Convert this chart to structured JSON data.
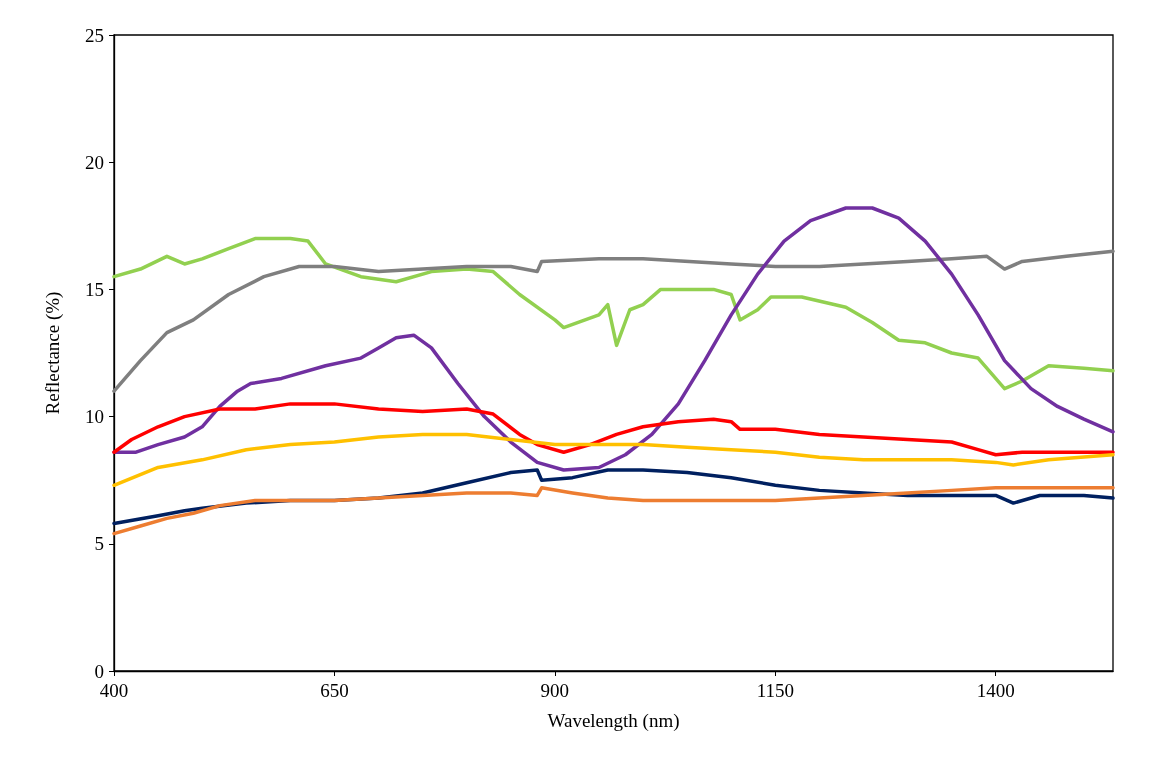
{
  "chart_data": {
    "type": "line",
    "xlabel": "Wavelength (nm)",
    "ylabel": "Reflectance (%)",
    "xlim": [
      400,
      1533
    ],
    "xticks": [
      400,
      650,
      900,
      1150,
      1400
    ],
    "ylim": [
      0,
      25
    ],
    "yticks": [
      0,
      5,
      10,
      15,
      20,
      25
    ],
    "grid": false,
    "marker": "none",
    "line_style": "solid",
    "series": [
      {
        "color": "#92d050",
        "x": [
          400,
          430,
          460,
          480,
          500,
          530,
          560,
          600,
          620,
          640,
          680,
          720,
          760,
          800,
          830,
          860,
          900,
          910,
          950,
          960,
          970,
          985,
          1000,
          1020,
          1060,
          1080,
          1100,
          1110,
          1130,
          1145,
          1180,
          1230,
          1260,
          1290,
          1320,
          1350,
          1380,
          1410,
          1430,
          1460,
          1500,
          1533
        ],
        "values": [
          15.5,
          15.8,
          16.3,
          16.0,
          16.2,
          16.6,
          17.0,
          17.0,
          16.9,
          16.0,
          15.5,
          15.3,
          15.7,
          15.8,
          15.7,
          14.8,
          13.8,
          13.5,
          14.0,
          14.4,
          12.8,
          14.2,
          14.4,
          15.0,
          15.0,
          15.0,
          14.8,
          13.8,
          14.2,
          14.7,
          14.7,
          14.3,
          13.7,
          13.0,
          12.9,
          12.5,
          12.3,
          11.1,
          11.4,
          12.0,
          11.9,
          11.8
        ]
      },
      {
        "color": "#7f7f7f",
        "x": [
          400,
          430,
          460,
          490,
          530,
          570,
          610,
          650,
          700,
          750,
          800,
          850,
          880,
          885,
          950,
          1000,
          1100,
          1150,
          1200,
          1250,
          1300,
          1350,
          1390,
          1410,
          1430,
          1480,
          1533
        ],
        "values": [
          11.0,
          12.2,
          13.3,
          13.8,
          14.8,
          15.5,
          15.9,
          15.9,
          15.7,
          15.8,
          15.9,
          15.9,
          15.7,
          16.1,
          16.2,
          16.2,
          16.0,
          15.9,
          15.9,
          16.0,
          16.1,
          16.2,
          16.3,
          15.8,
          16.1,
          16.3,
          16.5
        ]
      },
      {
        "color": "#7030a0",
        "x": [
          400,
          425,
          450,
          480,
          500,
          520,
          540,
          555,
          590,
          640,
          680,
          700,
          720,
          740,
          760,
          790,
          820,
          850,
          880,
          910,
          950,
          980,
          1010,
          1040,
          1070,
          1100,
          1130,
          1160,
          1190,
          1230,
          1260,
          1290,
          1320,
          1350,
          1380,
          1410,
          1440,
          1470,
          1500,
          1533
        ],
        "values": [
          8.6,
          8.6,
          8.9,
          9.2,
          9.6,
          10.4,
          11.0,
          11.3,
          11.5,
          12.0,
          12.3,
          12.7,
          13.1,
          13.2,
          12.7,
          11.3,
          10.0,
          9.0,
          8.2,
          7.9,
          8.0,
          8.5,
          9.3,
          10.5,
          12.2,
          14.0,
          15.6,
          16.9,
          17.7,
          18.2,
          18.2,
          17.8,
          16.9,
          15.6,
          14.0,
          12.2,
          11.1,
          10.4,
          9.9,
          9.4
        ]
      },
      {
        "color": "#ff0000",
        "x": [
          400,
          420,
          450,
          480,
          520,
          560,
          600,
          650,
          700,
          750,
          800,
          830,
          860,
          880,
          910,
          940,
          970,
          1000,
          1040,
          1080,
          1100,
          1110,
          1150,
          1200,
          1250,
          1300,
          1350,
          1380,
          1400,
          1430,
          1480,
          1533
        ],
        "values": [
          8.6,
          9.1,
          9.6,
          10.0,
          10.3,
          10.3,
          10.5,
          10.5,
          10.3,
          10.2,
          10.3,
          10.1,
          9.3,
          8.9,
          8.6,
          8.9,
          9.3,
          9.6,
          9.8,
          9.9,
          9.8,
          9.5,
          9.5,
          9.3,
          9.2,
          9.1,
          9.0,
          8.7,
          8.5,
          8.6,
          8.6,
          8.6
        ]
      },
      {
        "color": "#ffc000",
        "x": [
          400,
          450,
          500,
          550,
          600,
          650,
          700,
          750,
          800,
          850,
          900,
          950,
          1000,
          1050,
          1100,
          1150,
          1200,
          1250,
          1300,
          1350,
          1400,
          1420,
          1460,
          1533
        ],
        "values": [
          7.3,
          8.0,
          8.3,
          8.7,
          8.9,
          9.0,
          9.2,
          9.3,
          9.3,
          9.1,
          8.9,
          8.9,
          8.9,
          8.8,
          8.7,
          8.6,
          8.4,
          8.3,
          8.3,
          8.3,
          8.2,
          8.1,
          8.3,
          8.5
        ]
      },
      {
        "color": "#002060",
        "x": [
          400,
          450,
          480,
          500,
          550,
          600,
          650,
          700,
          750,
          800,
          850,
          880,
          885,
          920,
          960,
          1000,
          1050,
          1100,
          1150,
          1200,
          1250,
          1300,
          1350,
          1400,
          1420,
          1450,
          1500,
          1533
        ],
        "values": [
          5.8,
          6.1,
          6.3,
          6.4,
          6.6,
          6.7,
          6.7,
          6.8,
          7.0,
          7.4,
          7.8,
          7.9,
          7.5,
          7.6,
          7.9,
          7.9,
          7.8,
          7.6,
          7.3,
          7.1,
          7.0,
          6.9,
          6.9,
          6.9,
          6.6,
          6.9,
          6.9,
          6.8
        ]
      },
      {
        "color": "#ed7d31",
        "x": [
          400,
          430,
          460,
          490,
          520,
          560,
          600,
          650,
          700,
          750,
          800,
          850,
          880,
          885,
          920,
          960,
          1000,
          1050,
          1100,
          1150,
          1200,
          1250,
          1300,
          1350,
          1400,
          1450,
          1533
        ],
        "values": [
          5.4,
          5.7,
          6.0,
          6.2,
          6.5,
          6.7,
          6.7,
          6.7,
          6.8,
          6.9,
          7.0,
          7.0,
          6.9,
          7.2,
          7.0,
          6.8,
          6.7,
          6.7,
          6.7,
          6.7,
          6.8,
          6.9,
          7.0,
          7.1,
          7.2,
          7.2,
          7.2
        ]
      }
    ]
  }
}
